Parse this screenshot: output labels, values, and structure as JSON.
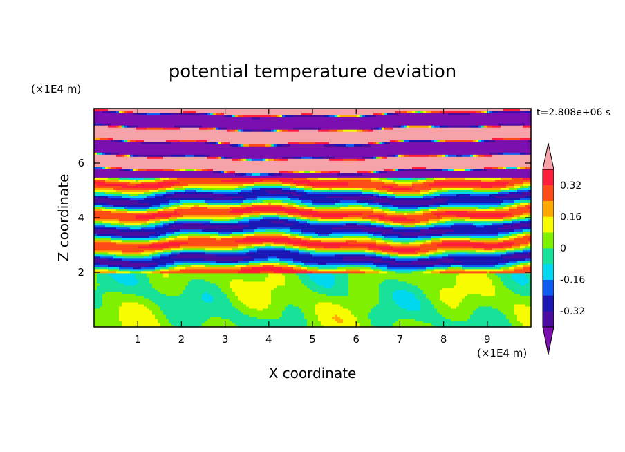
{
  "chart_data": {
    "type": "heatmap",
    "title": "potential temperature deviation",
    "xlabel": "X coordinate",
    "ylabel": "Z coordinate",
    "x_unit": "(×1E4 m)",
    "y_unit": "(×1E4 m)",
    "time_label": "t=2.808e+06 s",
    "xlim": [
      0,
      10
    ],
    "ylim": [
      0,
      8
    ],
    "x_ticks": [
      "1",
      "2",
      "3",
      "4",
      "5",
      "6",
      "7",
      "8",
      "9"
    ],
    "y_ticks": [
      "2",
      "4",
      "6"
    ],
    "colorbar": {
      "tick_labels": [
        "0.32",
        "0.16",
        "0",
        "-0.16",
        "-0.32"
      ],
      "tick_values": [
        0.32,
        0.16,
        0,
        -0.16,
        -0.32
      ],
      "levels": [
        -0.4,
        -0.32,
        -0.24,
        -0.16,
        -0.08,
        0,
        0.08,
        0.16,
        0.24,
        0.32,
        0.4
      ],
      "colors": [
        "#7b0fb0",
        "#4b0d9f",
        "#1a17b4",
        "#0f5cf2",
        "#00d8f0",
        "#18e29a",
        "#7ef000",
        "#f7fd00",
        "#ffa800",
        "#fe4c18",
        "#ff1f3a",
        "#f5a2a8"
      ],
      "extend": "both"
    },
    "layers": [
      {
        "from_z": 0.0,
        "to_z": 2.0,
        "description": "weak anomalies, mostly 0 to 0.08"
      },
      {
        "from_z": 2.0,
        "to_z": 5.5,
        "description": "banded anomalies from -0.4 to 0.4"
      },
      {
        "from_z": 5.5,
        "to_z": 8.0,
        "description": "strong alternating bands, saturated"
      }
    ]
  }
}
